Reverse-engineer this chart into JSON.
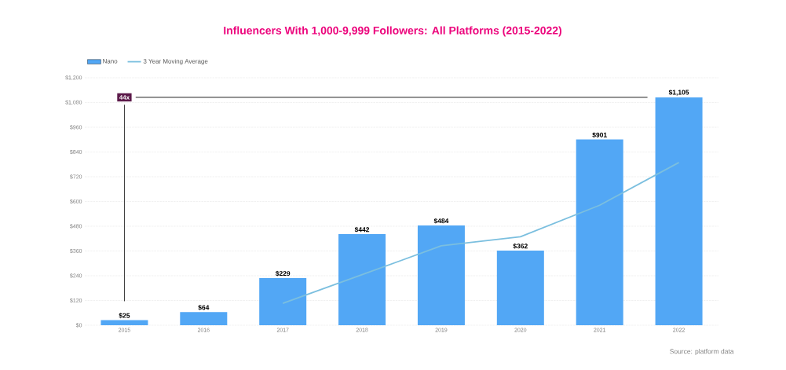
{
  "chart_data": {
    "type": "bar",
    "title": "Influencers With 1,000-9,999 Followers: All Platforms (2015-2022)",
    "categories": [
      "2015",
      "2016",
      "2017",
      "2018",
      "2019",
      "2020",
      "2021",
      "2022"
    ],
    "series": [
      {
        "name": "Nano",
        "color": "#52a7f5",
        "values": [
          25,
          64,
          229,
          442,
          484,
          362,
          901,
          1105
        ],
        "value_labels": [
          "$25",
          "$64",
          "$229",
          "$442",
          "$484",
          "$362",
          "$901",
          "$1,105"
        ]
      },
      {
        "name": "3 Year Moving Average",
        "type": "line",
        "color": "#7bbfdf",
        "values": [
          null,
          null,
          106,
          245,
          385,
          429,
          582,
          789
        ]
      }
    ],
    "ylim": [
      0,
      1200
    ],
    "yticks": [
      {
        "value": 0,
        "label": "$0"
      },
      {
        "value": 120,
        "label": "$120"
      },
      {
        "value": 240,
        "label": "$240"
      },
      {
        "value": 360,
        "label": "$360"
      },
      {
        "value": 480,
        "label": "$480"
      },
      {
        "value": 600,
        "label": "$600"
      },
      {
        "value": 720,
        "label": "$720"
      },
      {
        "value": 840,
        "label": "$840"
      },
      {
        "value": 960,
        "label": "$960"
      },
      {
        "value": 1080,
        "label": "$1,080"
      },
      {
        "value": 1200,
        "label": "$1,200"
      }
    ],
    "grid": "y",
    "legend": "top left",
    "marker": "none",
    "line_style": "solid",
    "ref_lines": [
      {
        "axis": "y",
        "value": 1105,
        "label": "44x",
        "color": "#4c4c4c"
      }
    ],
    "annotations": [
      "Source: platform data"
    ]
  }
}
